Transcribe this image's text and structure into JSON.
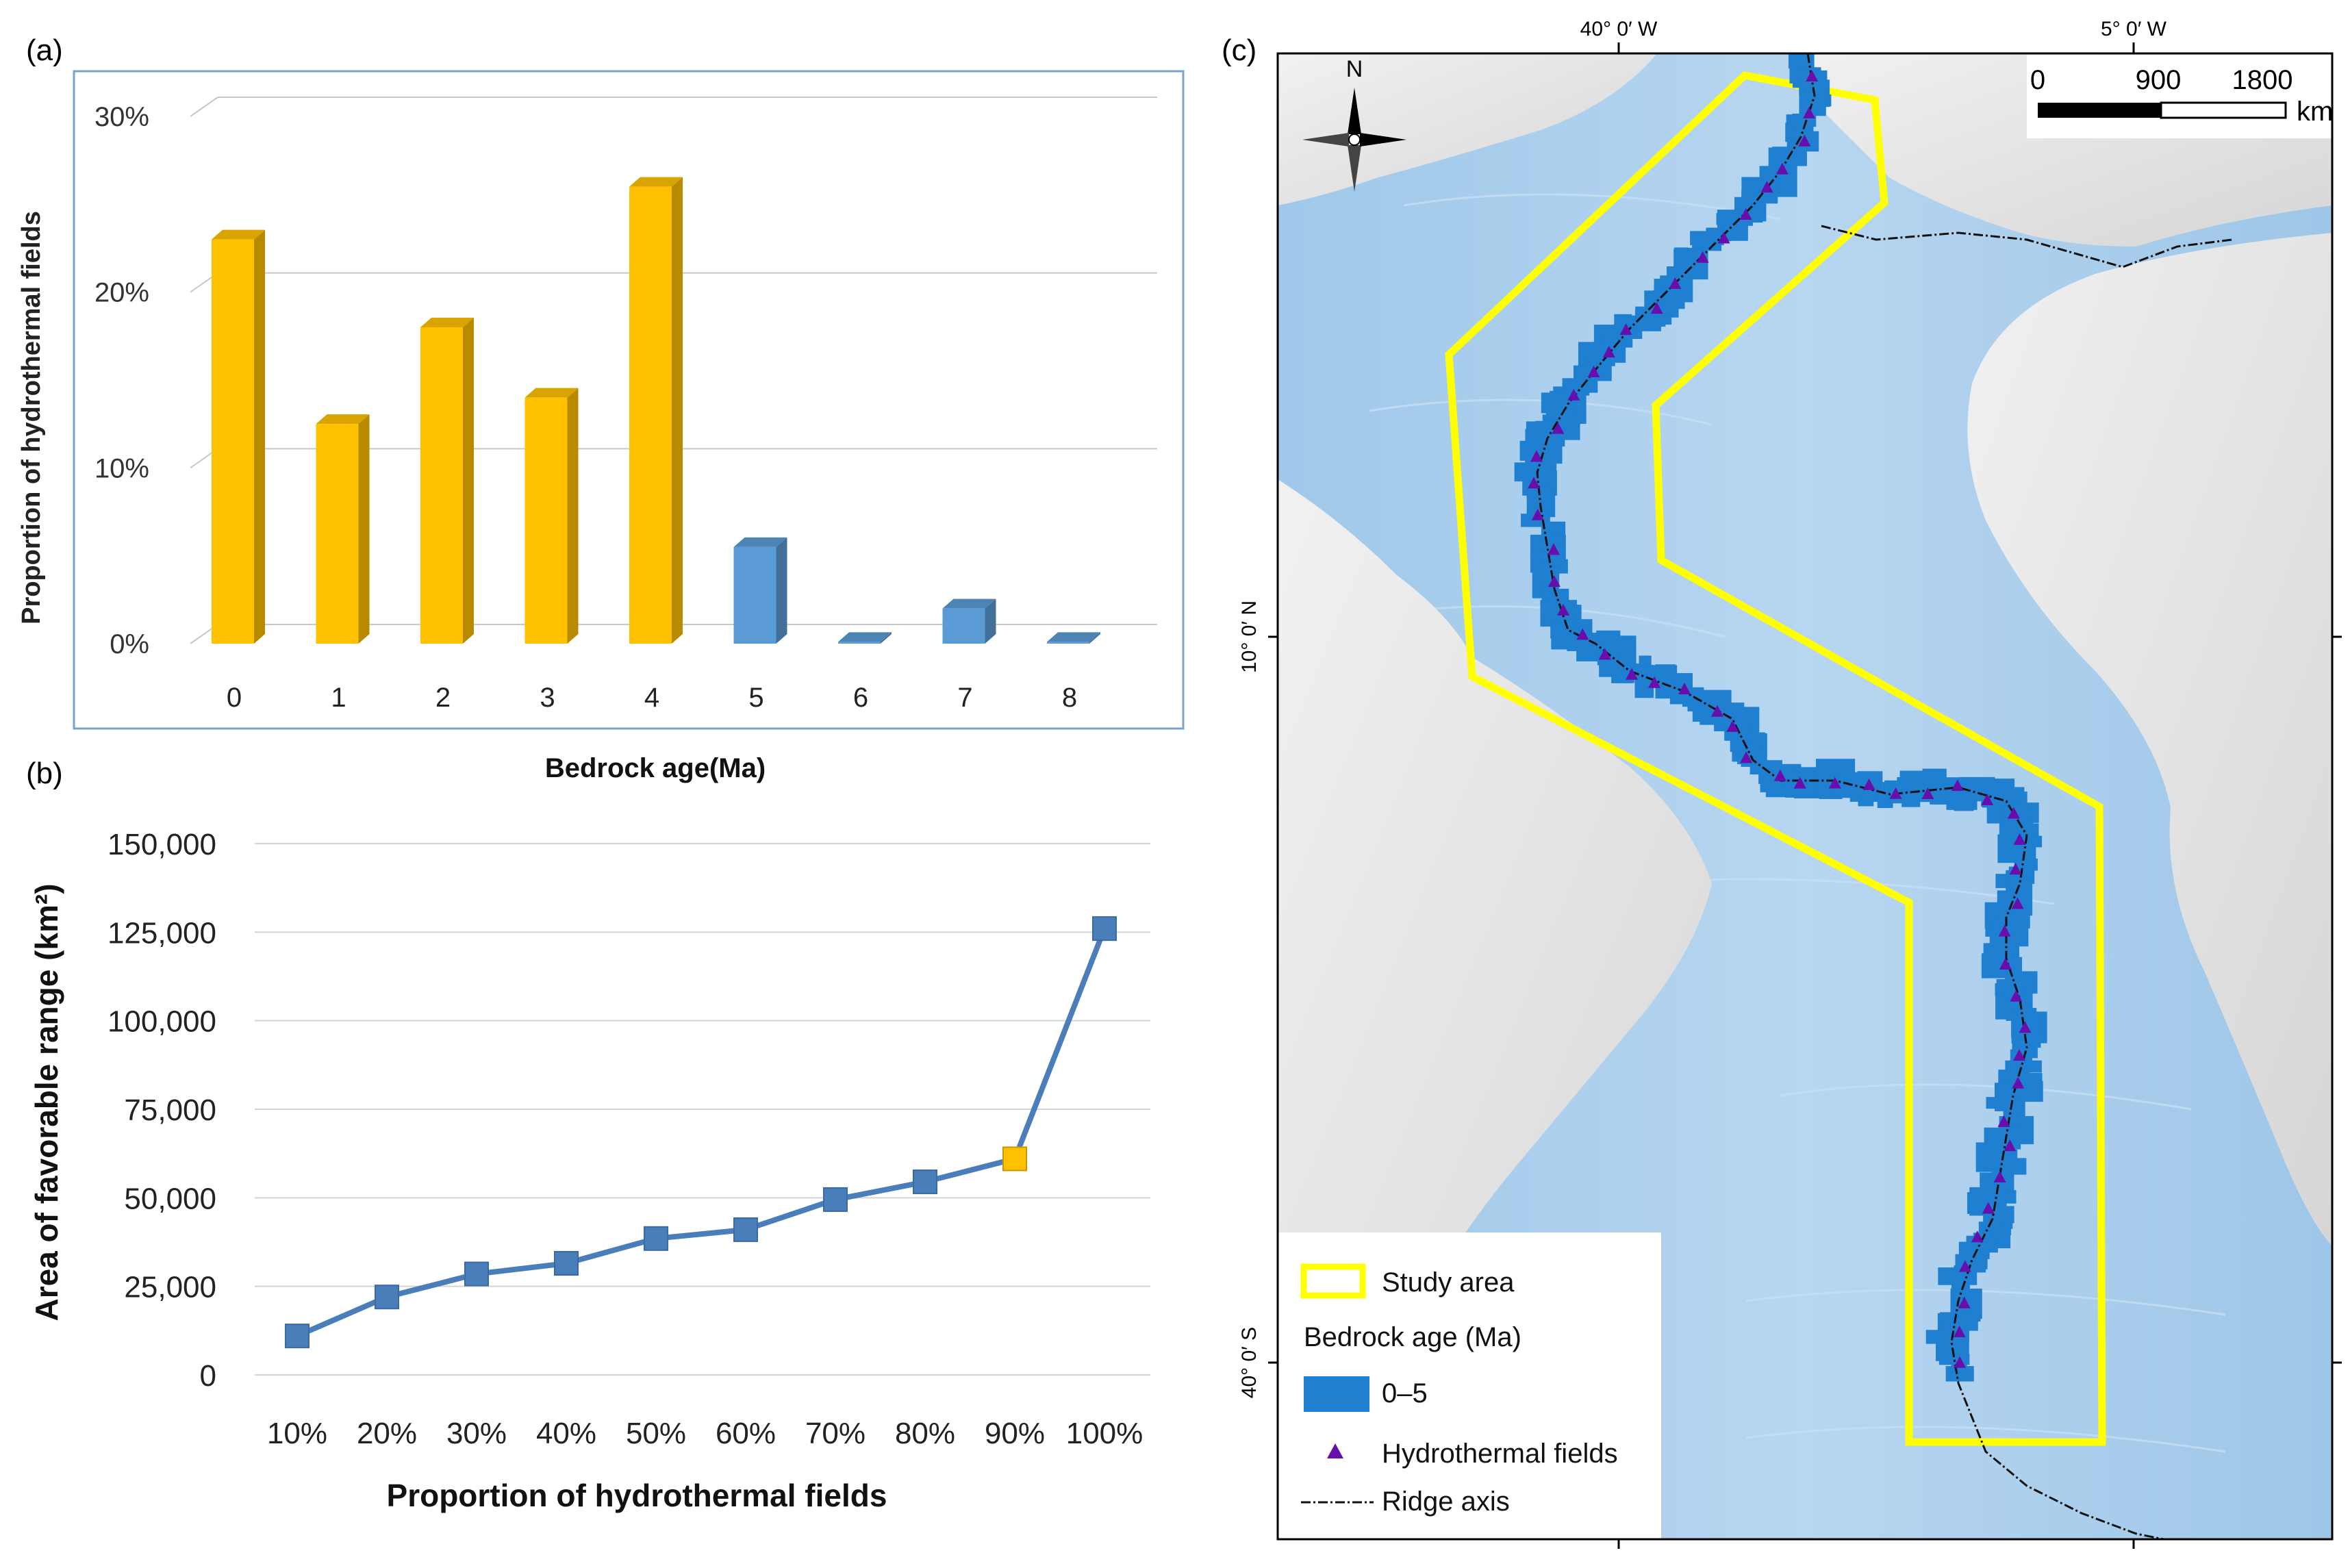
{
  "panel_a": {
    "label": "(a)",
    "chart_data": {
      "type": "bar",
      "categories": [
        "0",
        "1",
        "2",
        "3",
        "4",
        "5",
        "6",
        "7",
        "8"
      ],
      "values": [
        23,
        12.5,
        18,
        14,
        26,
        5.5,
        0.1,
        2,
        0.1
      ],
      "bar_colors": [
        "#ffc000",
        "#ffc000",
        "#ffc000",
        "#ffc000",
        "#ffc000",
        "#5b9bd5",
        "#5b9bd5",
        "#5b9bd5",
        "#5b9bd5"
      ],
      "title": "",
      "xlabel": "Bedrock age(Ma)",
      "ylabel": "Proportion  of  hydrothermal  fields",
      "ylim": [
        0,
        30
      ],
      "yticks": [
        0,
        10,
        20,
        30
      ],
      "ytick_labels": [
        "0%",
        "10%",
        "20%",
        "30%"
      ],
      "grid": true
    }
  },
  "panel_b": {
    "label": "(b)",
    "chart_data": {
      "type": "line",
      "categories": [
        "10%",
        "20%",
        "30%",
        "40%",
        "50%",
        "60%",
        "70%",
        "80%",
        "90%",
        "100%"
      ],
      "values": [
        11000,
        22000,
        28500,
        31500,
        38500,
        41000,
        49500,
        54500,
        61000,
        126000
      ],
      "highlight_index": 8,
      "series_color": "#4a7ebb",
      "highlight_color": "#ffc000",
      "title": "",
      "xlabel": "Proportion of hydrothermal fields",
      "ylabel": "Area of favorable range (km²)",
      "ylim": [
        0,
        150000
      ],
      "yticks": [
        0,
        25000,
        50000,
        75000,
        100000,
        125000,
        150000
      ],
      "ytick_labels": [
        "0",
        "25,000",
        "50,000",
        "75,000",
        "100,000",
        "125,000",
        "150,000"
      ],
      "grid": true
    }
  },
  "panel_c": {
    "label": "(c)",
    "north_label": "N",
    "lon_labels": [
      "40° 0′ W",
      "5° 0′ W"
    ],
    "lat_labels": [
      "10° 0′ N",
      "40° 0′ S"
    ],
    "scale_bar": {
      "ticks": [
        "0",
        "900",
        "1800"
      ],
      "unit": "km"
    },
    "legend": {
      "study_area": "Study area",
      "bedrock_title": "Bedrock age (Ma)",
      "bedrock_range": "0–5",
      "hydrothermal": "Hydrothermal fields",
      "ridge": "Ridge axis"
    },
    "colors": {
      "ocean": "#a9cdeb",
      "land": "#e2e2e2",
      "study_area": "#ffff00",
      "bedrock": "#1f7fd0",
      "hydrothermal": "#6a0dad",
      "ridge": "#000000"
    }
  }
}
